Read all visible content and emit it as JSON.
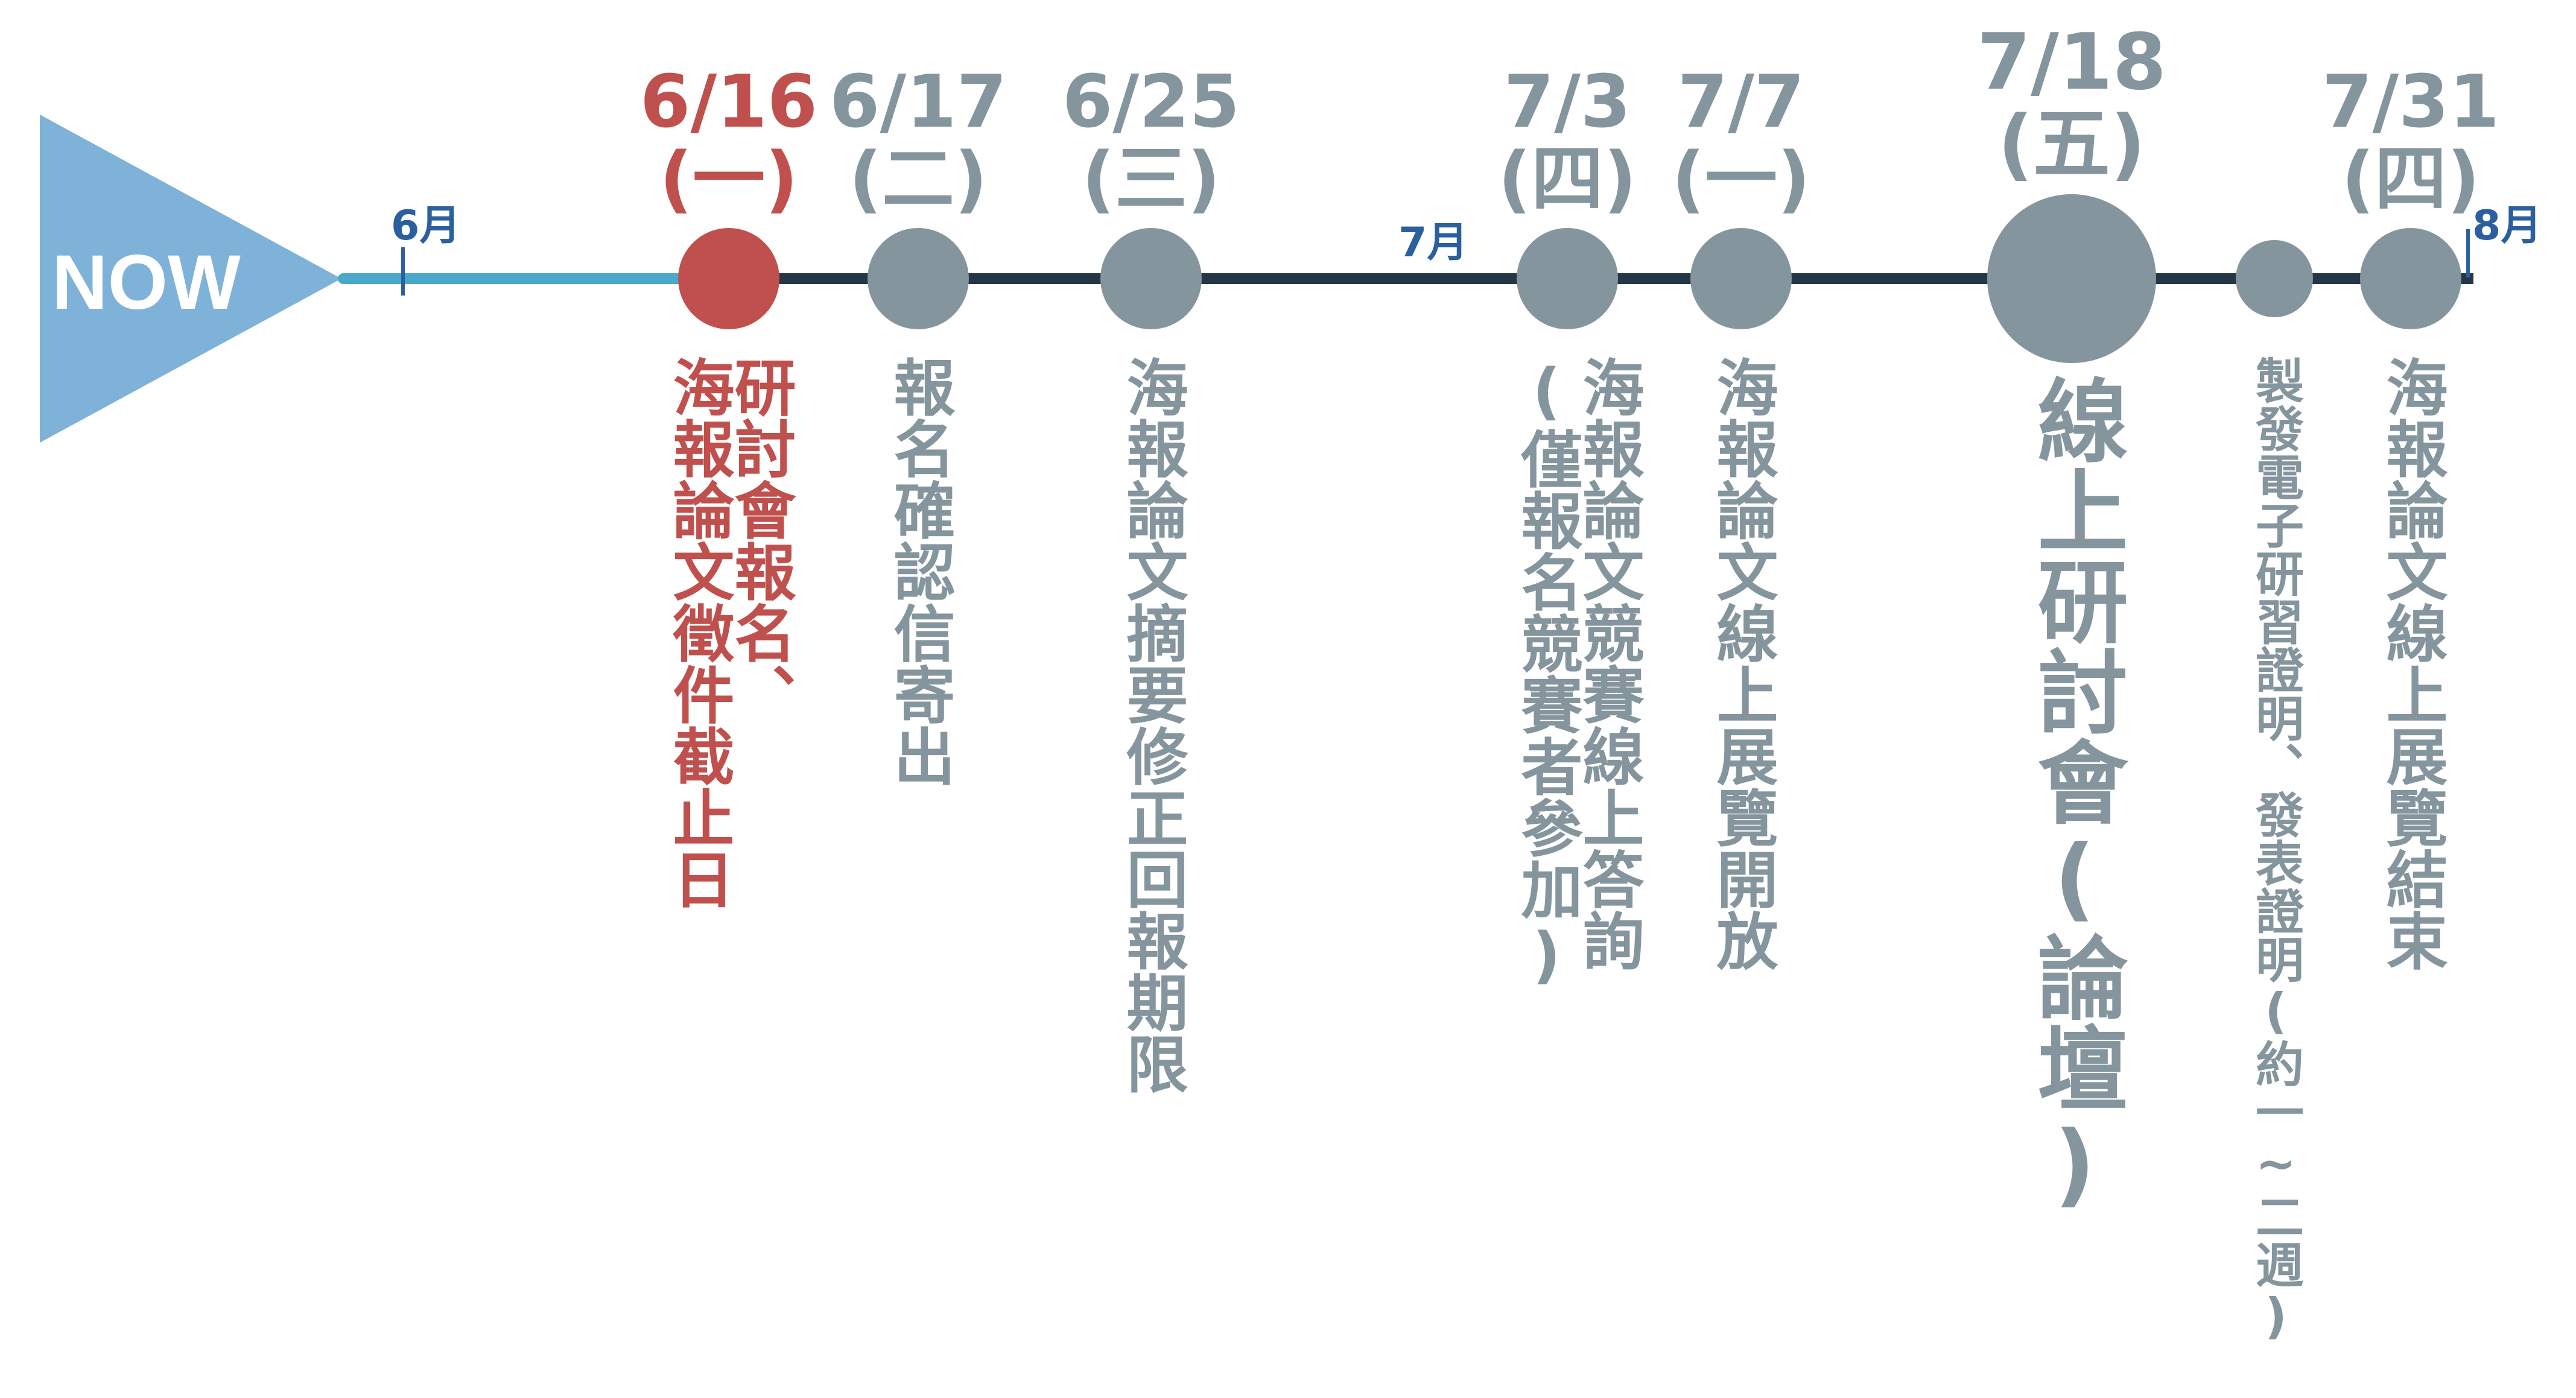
{
  "now_label": "NOW",
  "months": [
    "6月",
    "7月",
    "8月"
  ],
  "events": [
    {
      "date": "6/16",
      "weekday": "(一)",
      "desc_lines": [
        "研討會報名、",
        "海報論文徵件截止日"
      ],
      "active": true
    },
    {
      "date": "6/17",
      "weekday": "(二)",
      "desc_lines": [
        "報名確認信寄出"
      ],
      "active": false
    },
    {
      "date": "6/25",
      "weekday": "(三)",
      "desc_lines": [
        "海報論文摘要修正回報期限"
      ],
      "active": false
    },
    {
      "date": "7/3",
      "weekday": "(四)",
      "desc_lines": [
        "海報論文競賽線上答詢",
        "(僅報名競賽者參加)"
      ],
      "active": false
    },
    {
      "date": "7/7",
      "weekday": "(一)",
      "desc_lines": [
        "海報論文線上展覽開放"
      ],
      "active": false
    },
    {
      "date": "7/18",
      "weekday": "(五)",
      "desc_lines": [
        "線上研討會(論壇)"
      ],
      "active": false
    },
    {
      "date": "",
      "weekday": "",
      "desc_lines": [
        "製發電子研習證明、發表證明(約一~二週)"
      ],
      "active": false
    },
    {
      "date": "7/31",
      "weekday": "(四)",
      "desc_lines": [
        "海報論文線上展覽結束"
      ],
      "active": false
    }
  ],
  "colors": {
    "now_arrow": "#7fb2d8",
    "now_line": "#4aa9c8",
    "main_line": "#253746",
    "active": "#c0504d",
    "inactive": "#85959e",
    "month": "#2b5f9e"
  }
}
